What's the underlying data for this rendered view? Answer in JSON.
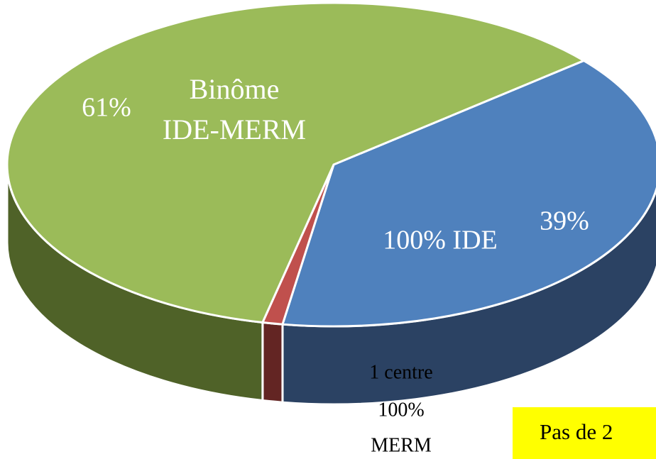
{
  "chart_data": {
    "type": "pie3d",
    "categories": [
      [
        "100% IDE"
      ],
      [
        "1 centre",
        "100%",
        "MERM"
      ],
      [
        "Binôme",
        "IDE-MERM"
      ]
    ],
    "values": [
      39,
      1,
      61
    ],
    "value_labels": [
      "39%",
      null,
      "61%"
    ],
    "colors": [
      "#4f81bd",
      "#c0504d",
      "#9bbb59"
    ],
    "side_colors": [
      "#2b4263",
      "#632523",
      "#4f6228"
    ],
    "annotation": "Pas de 2"
  }
}
